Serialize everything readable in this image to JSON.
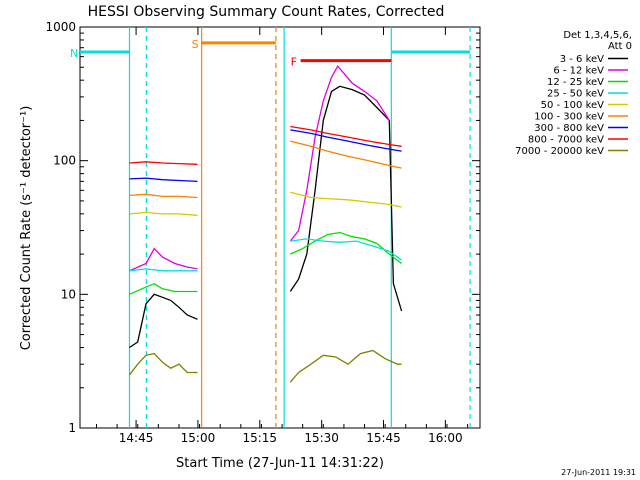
{
  "chart_data": {
    "type": "line",
    "title": "HESSI Observing Summary Count Rates, Corrected",
    "xlabel": "Start Time (27-Jun-11 14:31:22)",
    "ylabel": "Corrected Count Rate (s⁻¹ detector⁻¹)",
    "x_unit": "minutes since 14:31:22",
    "xlim": [
      0,
      97
    ],
    "ylim": [
      1,
      1000
    ],
    "y_scale": "log",
    "x_ticks": [
      {
        "label": "14:45",
        "value": 13.6
      },
      {
        "label": "15:00",
        "value": 28.6
      },
      {
        "label": "15:15",
        "value": 43.6
      },
      {
        "label": "15:30",
        "value": 58.6
      },
      {
        "label": "15:45",
        "value": 73.6
      },
      {
        "label": "16:00",
        "value": 88.6
      }
    ],
    "y_ticks": [
      {
        "label": "1",
        "value": 1
      },
      {
        "label": "10",
        "value": 10
      },
      {
        "label": "100",
        "value": 100
      },
      {
        "label": "1000",
        "value": 1000
      }
    ],
    "legend_header": [
      "Det 1,3,4,5,6,",
      "Att 0"
    ],
    "series": [
      {
        "name": "3 - 6 keV",
        "color": "#000000",
        "segments": [
          [
            [
              12,
              4
            ],
            [
              14,
              4.4
            ],
            [
              16,
              8.5
            ],
            [
              18,
              10
            ],
            [
              20,
              9.5
            ],
            [
              22,
              9
            ],
            [
              24,
              8
            ],
            [
              26,
              7
            ],
            [
              28.5,
              6.5
            ]
          ],
          [
            [
              51,
              10.5
            ],
            [
              53,
              13
            ],
            [
              55,
              20
            ],
            [
              57,
              60
            ],
            [
              59,
              200
            ],
            [
              61,
              330
            ],
            [
              63,
              360
            ],
            [
              66,
              340
            ],
            [
              69,
              310
            ],
            [
              72,
              250
            ],
            [
              75,
              200
            ],
            [
              76,
              12
            ],
            [
              78,
              7.5
            ]
          ]
        ]
      },
      {
        "name": "6 - 12 keV",
        "color": "#e000e0",
        "segments": [
          [
            [
              12,
              15
            ],
            [
              16,
              17
            ],
            [
              18,
              22
            ],
            [
              20,
              19
            ],
            [
              23,
              17
            ],
            [
              26,
              16
            ],
            [
              28.5,
              15.5
            ]
          ],
          [
            [
              51,
              25
            ],
            [
              53,
              30
            ],
            [
              55,
              60
            ],
            [
              57,
              150
            ],
            [
              59,
              280
            ],
            [
              61,
              420
            ],
            [
              62.5,
              510
            ],
            [
              64,
              450
            ],
            [
              66,
              380
            ],
            [
              69,
              330
            ],
            [
              72,
              280
            ],
            [
              75,
              200
            ]
          ]
        ]
      },
      {
        "name": "12 - 25 keV",
        "color": "#00e000",
        "segments": [
          [
            [
              12,
              10
            ],
            [
              15,
              11
            ],
            [
              18,
              12
            ],
            [
              20,
              11
            ],
            [
              23,
              10.5
            ],
            [
              26,
              10.5
            ],
            [
              28.5,
              10.5
            ]
          ],
          [
            [
              51,
              20
            ],
            [
              54,
              22
            ],
            [
              57,
              25
            ],
            [
              60,
              28
            ],
            [
              63,
              29
            ],
            [
              66,
              27
            ],
            [
              69,
              26
            ],
            [
              72,
              24
            ],
            [
              75,
              20
            ],
            [
              78,
              17
            ]
          ]
        ]
      },
      {
        "name": "25 - 50 keV",
        "color": "#00e0e0",
        "segments": [
          [
            [
              12,
              15
            ],
            [
              16,
              15.5
            ],
            [
              20,
              15
            ],
            [
              24,
              15
            ],
            [
              28.5,
              15
            ]
          ],
          [
            [
              51,
              25
            ],
            [
              55,
              26
            ],
            [
              59,
              25
            ],
            [
              63,
              24.5
            ],
            [
              67,
              25
            ],
            [
              71,
              23
            ],
            [
              75,
              21
            ],
            [
              78,
              18
            ]
          ]
        ]
      },
      {
        "name": "50 - 100 keV",
        "color": "#d8c800",
        "segments": [
          [
            [
              12,
              40
            ],
            [
              16,
              41
            ],
            [
              20,
              40
            ],
            [
              24,
              40
            ],
            [
              28.5,
              39
            ]
          ],
          [
            [
              51,
              58
            ],
            [
              56,
              53
            ],
            [
              60,
              52
            ],
            [
              65,
              51
            ],
            [
              70,
              49
            ],
            [
              75,
              47
            ],
            [
              78,
              45
            ]
          ]
        ]
      },
      {
        "name": "100 - 300 keV",
        "color": "#ff8000",
        "segments": [
          [
            [
              12,
              55
            ],
            [
              16,
              56
            ],
            [
              20,
              54
            ],
            [
              24,
              54
            ],
            [
              28.5,
              53
            ]
          ],
          [
            [
              51,
              140
            ],
            [
              56,
              128
            ],
            [
              60,
              118
            ],
            [
              65,
              108
            ],
            [
              70,
              100
            ],
            [
              75,
              92
            ],
            [
              78,
              88
            ]
          ]
        ]
      },
      {
        "name": "300 - 800 keV",
        "color": "#0000ff",
        "segments": [
          [
            [
              12,
              73
            ],
            [
              16,
              74
            ],
            [
              20,
              72
            ],
            [
              24,
              71
            ],
            [
              28.5,
              70
            ]
          ],
          [
            [
              51,
              170
            ],
            [
              56,
              160
            ],
            [
              60,
              150
            ],
            [
              65,
              140
            ],
            [
              70,
              130
            ],
            [
              75,
              122
            ],
            [
              78,
              118
            ]
          ]
        ]
      },
      {
        "name": "800 - 7000 keV",
        "color": "#ff0000",
        "segments": [
          [
            [
              12,
              96
            ],
            [
              16,
              98
            ],
            [
              20,
              96
            ],
            [
              24,
              95
            ],
            [
              28.5,
              94
            ]
          ],
          [
            [
              51,
              180
            ],
            [
              56,
              170
            ],
            [
              60,
              160
            ],
            [
              65,
              150
            ],
            [
              70,
              140
            ],
            [
              75,
              132
            ],
            [
              78,
              128
            ]
          ]
        ]
      },
      {
        "name": "7000 - 20000 keV",
        "color": "#808000",
        "segments": [
          [
            [
              12,
              2.5
            ],
            [
              14,
              3
            ],
            [
              16,
              3.5
            ],
            [
              18,
              3.6
            ],
            [
              20,
              3.1
            ],
            [
              22,
              2.8
            ],
            [
              24,
              3
            ],
            [
              26,
              2.6
            ],
            [
              28.5,
              2.6
            ]
          ],
          [
            [
              51,
              2.2
            ],
            [
              53,
              2.6
            ],
            [
              56,
              3
            ],
            [
              59,
              3.5
            ],
            [
              62,
              3.4
            ],
            [
              65,
              3
            ],
            [
              68,
              3.6
            ],
            [
              71,
              3.8
            ],
            [
              74,
              3.3
            ],
            [
              77,
              3
            ],
            [
              78,
              3
            ]
          ]
        ]
      }
    ],
    "spans": [
      {
        "label": "N",
        "color": "#00e0e0",
        "start": 0,
        "end": 12,
        "dashed_end": 16.1,
        "y": 650
      },
      {
        "label": "S",
        "color": "#ff8000",
        "start": 29.5,
        "end": 47.5,
        "dashed_end": 47.5,
        "y": 760
      },
      {
        "label": "F",
        "color": "#ff0000",
        "start": 53.5,
        "end": 75.5,
        "dashed_end": null,
        "y": 560
      },
      {
        "label": "",
        "color": "#00e0e0",
        "start": 75.5,
        "end": 94.6,
        "dashed_end": 94.6,
        "y": 650
      }
    ],
    "vertical_markers": [
      {
        "x": 12,
        "color": "#00e0e0",
        "dashed": false
      },
      {
        "x": 16.1,
        "color": "#00e0e0",
        "dashed": true
      },
      {
        "x": 29.5,
        "color": "#ff8000",
        "dashed": false
      },
      {
        "x": 47.5,
        "color": "#ff8000",
        "dashed": true
      },
      {
        "x": 49.5,
        "color": "#00e0e0",
        "dashed": false
      },
      {
        "x": 75.5,
        "color": "#00e0e0",
        "dashed": false
      },
      {
        "x": 94.6,
        "color": "#00e0e0",
        "dashed": true
      }
    ],
    "timestamp": "27-Jun-2011 19:31"
  }
}
